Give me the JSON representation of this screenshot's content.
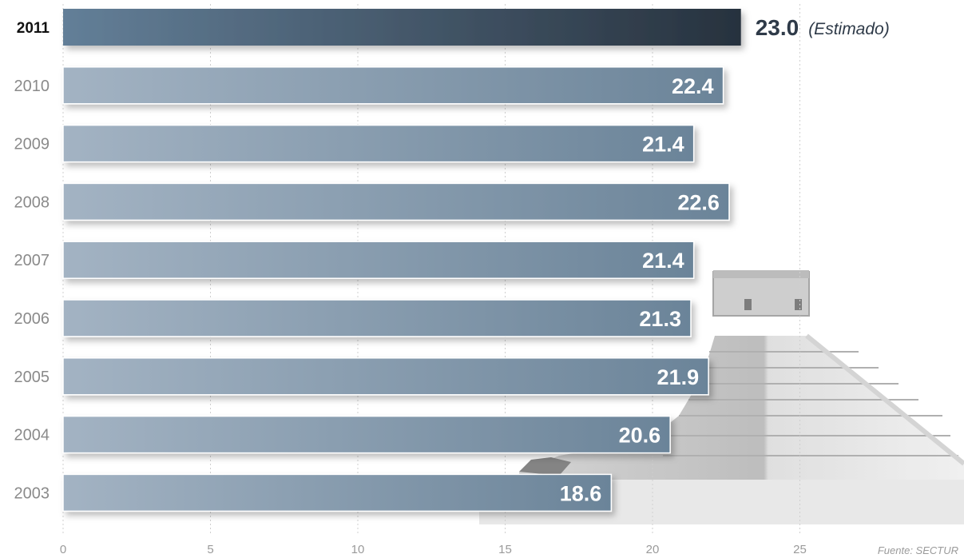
{
  "chart_data": {
    "type": "bar",
    "orientation": "horizontal",
    "categories": [
      "2011",
      "2010",
      "2009",
      "2008",
      "2007",
      "2006",
      "2005",
      "2004",
      "2003"
    ],
    "values": [
      23.0,
      22.4,
      21.4,
      22.6,
      21.4,
      21.3,
      21.9,
      20.6,
      18.6
    ],
    "value_labels": [
      "23.0",
      "22.4",
      "21.4",
      "22.6",
      "21.4",
      "21.3",
      "21.9",
      "20.6",
      "18.6"
    ],
    "highlight": {
      "category": "2011",
      "note": "(Estimado)"
    },
    "x_ticks": [
      "0",
      "5",
      "10",
      "15",
      "20",
      "25"
    ],
    "xlim": [
      0,
      25
    ],
    "grid": "vertical dotted",
    "source": "Fuente: SECTUR",
    "colors": {
      "bar_light": "#9fb0c0",
      "bar_dark": "#6a8499",
      "highlight_start": "#5f7b94",
      "highlight_end": "#28333f",
      "grid": "#cfcfcf"
    }
  },
  "decoration": {
    "background_image_icon": "pyramid-icon"
  }
}
